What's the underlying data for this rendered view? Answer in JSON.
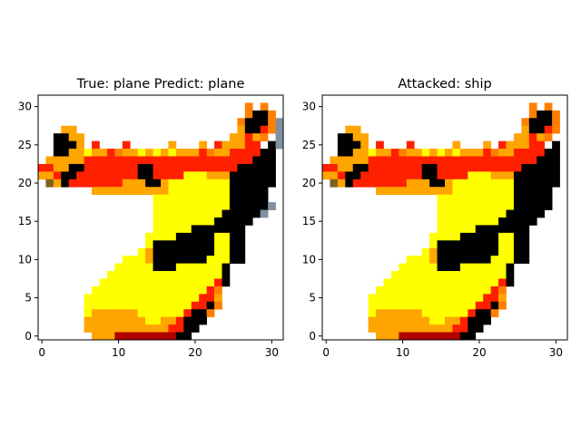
{
  "chart_data": [
    {
      "type": "heatmap",
      "title": "True: plane  Predict: plane",
      "image": "32x32 pixel-art airplane with yellow-orange-red fill and black details",
      "xlim": [
        -0.5,
        31.5
      ],
      "ylim": [
        31.5,
        -0.5
      ],
      "xticks": [
        0,
        10,
        20,
        30
      ],
      "yticks": [
        0,
        5,
        10,
        15,
        20,
        25,
        30
      ],
      "xlabel": "",
      "ylabel": ""
    },
    {
      "type": "heatmap",
      "title": "Attacked: ship",
      "image": "same airplane image after adversarial perturbation",
      "xlim": [
        -0.5,
        31.5
      ],
      "ylim": [
        31.5,
        -0.5
      ],
      "xticks": [
        0,
        10,
        20,
        30
      ],
      "yticks": [
        0,
        5,
        10,
        15,
        20,
        25,
        30
      ],
      "xlabel": "",
      "ylabel": ""
    }
  ],
  "colors": {
    "yellow": "#ffff00",
    "light_yellow": "#ffff44",
    "orange": "#ffa500",
    "dark_orange": "#ff8000",
    "red": "#ff2000",
    "dark_red": "#b00000",
    "brown": "#806020",
    "black": "#000000",
    "gray_blue": "#8090a0"
  }
}
